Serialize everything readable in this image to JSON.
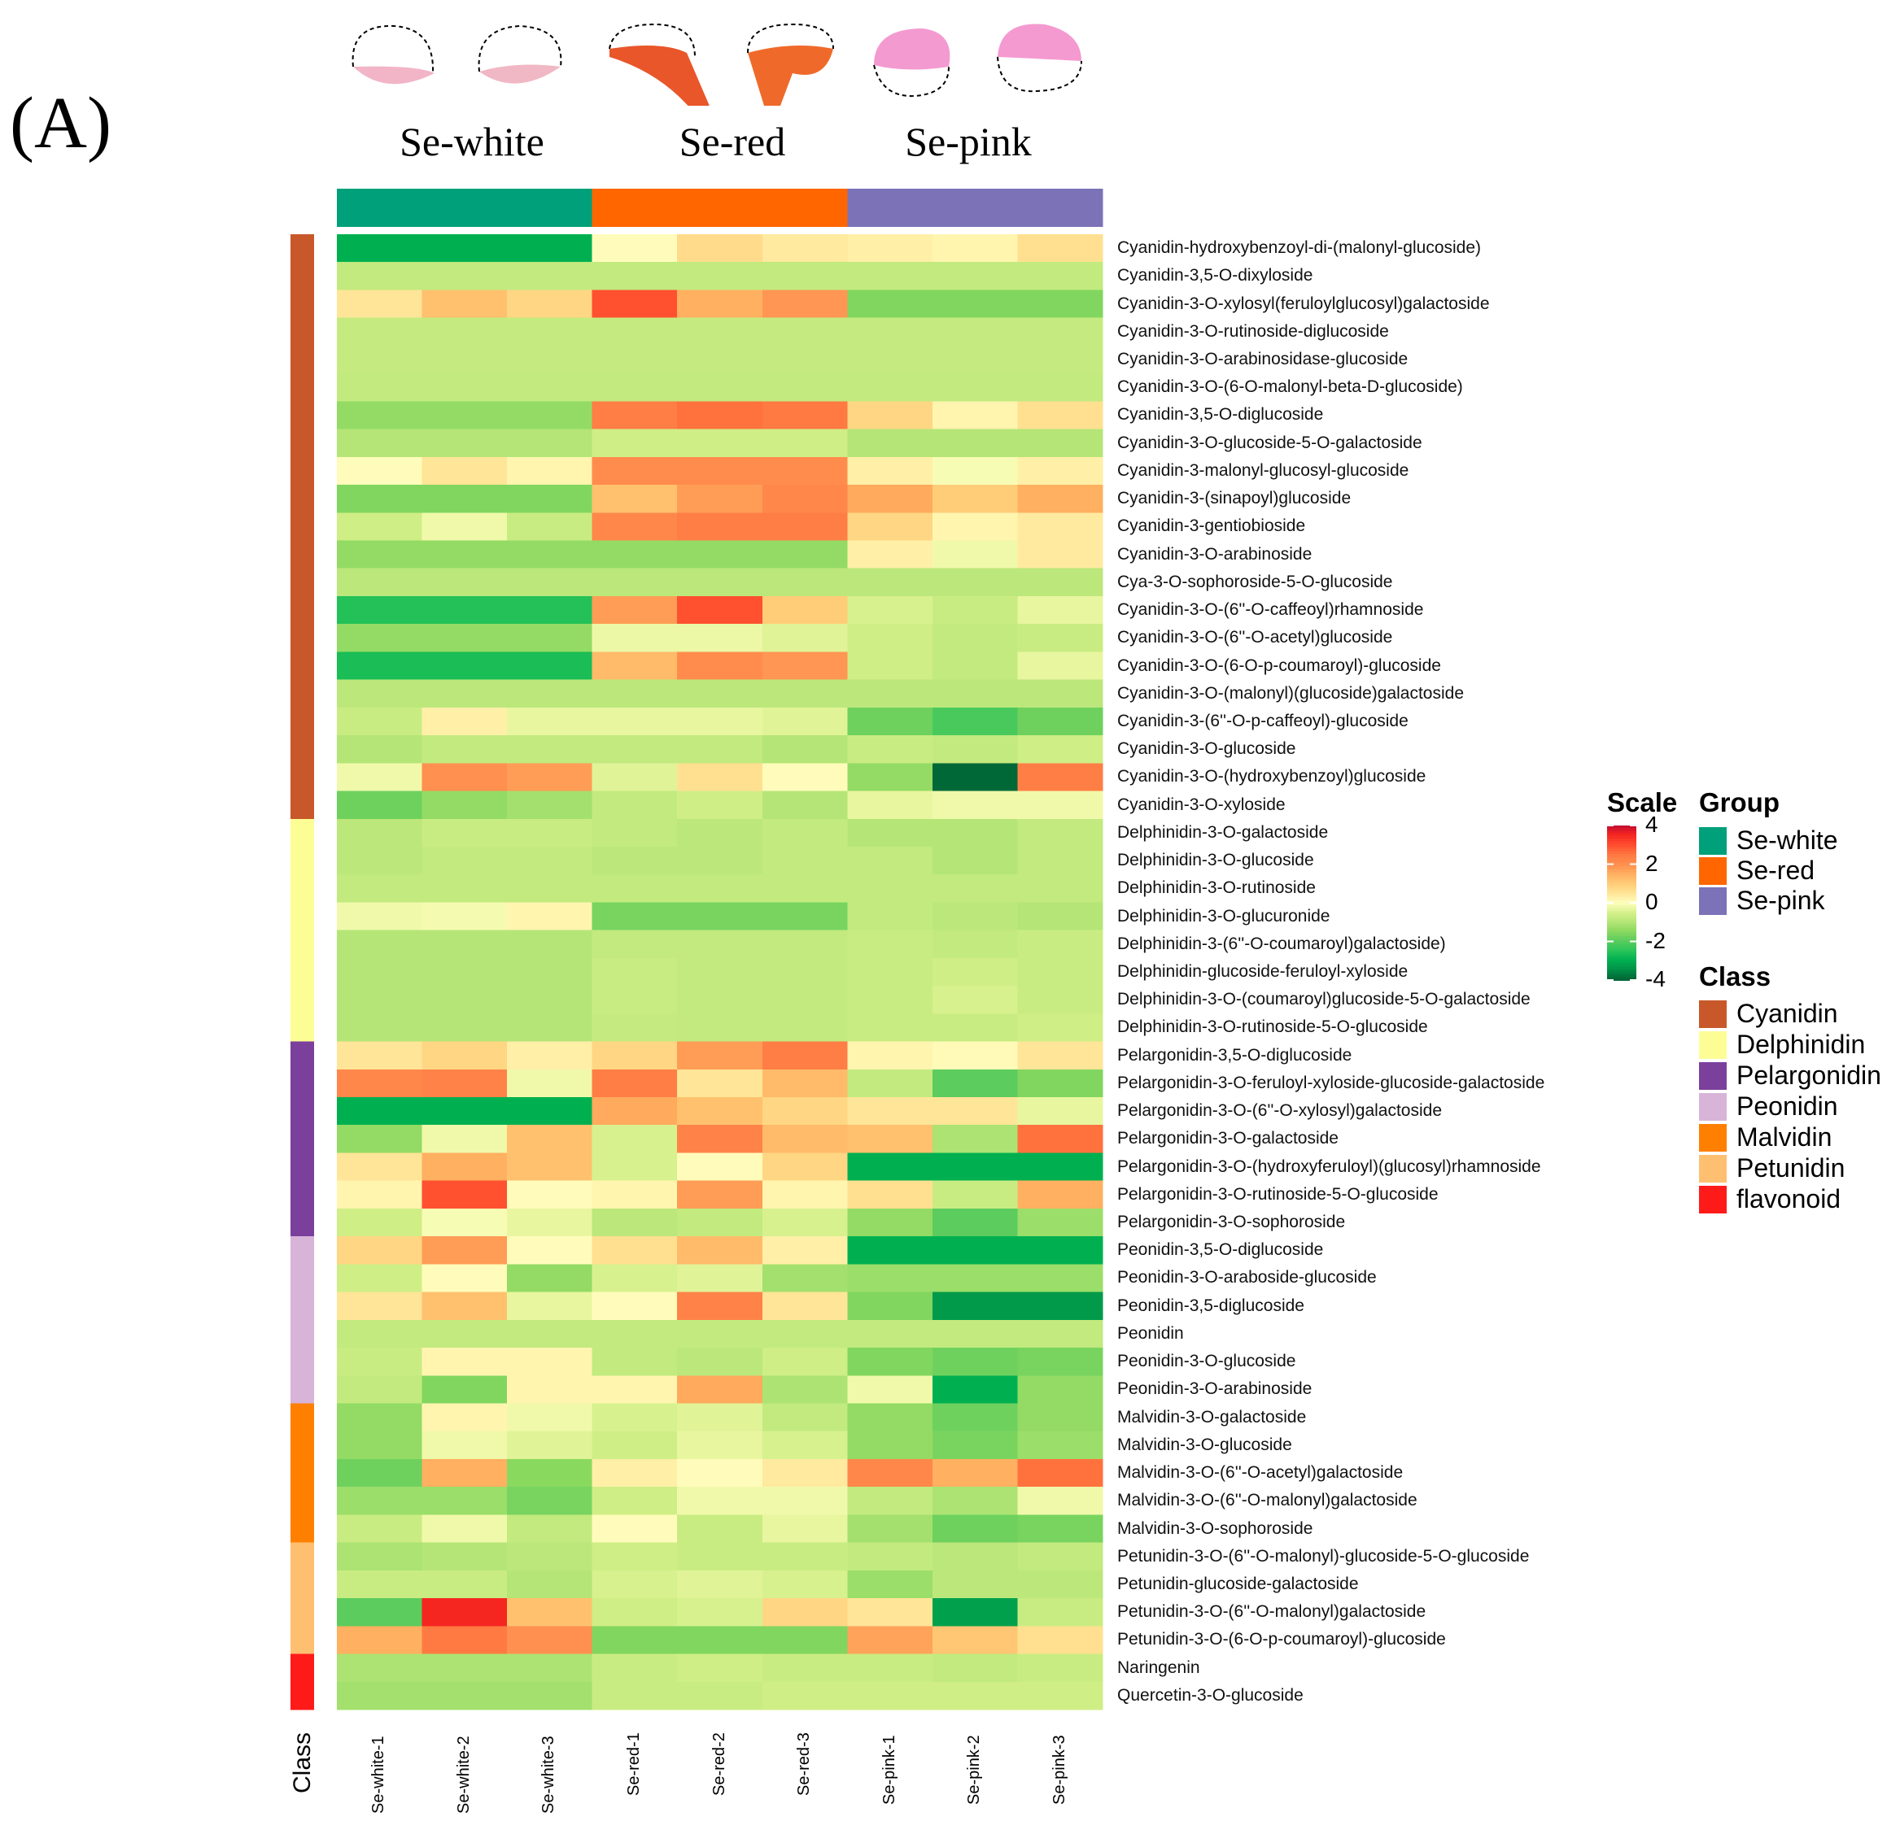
{
  "panel_label": "(A)",
  "chart_data": {
    "type": "heatmap",
    "groups": [
      {
        "name": "Se-white",
        "color": "#00a07a"
      },
      {
        "name": "Se-red",
        "color": "#ff6600"
      },
      {
        "name": "Se-pink",
        "color": "#7b72b8"
      }
    ],
    "columns": [
      "Se-white-1",
      "Se-white-2",
      "Se-white-3",
      "Se-red-1",
      "Se-red-2",
      "Se-red-3",
      "Se-pink-1",
      "Se-pink-2",
      "Se-pink-3"
    ],
    "column_groups": [
      0,
      0,
      0,
      1,
      1,
      1,
      2,
      2,
      2
    ],
    "classes": [
      {
        "name": "Cyanidin",
        "color": "#c8582a"
      },
      {
        "name": "Delphinidin",
        "color": "#fdfd96"
      },
      {
        "name": "Pelargonidin",
        "color": "#7b3f9c"
      },
      {
        "name": "Peonidin",
        "color": "#d8b4d8"
      },
      {
        "name": "Malvidin",
        "color": "#ff8000"
      },
      {
        "name": "Petunidin",
        "color": "#ffbf70"
      },
      {
        "name": "flavonoid",
        "color": "#ff1a1a"
      }
    ],
    "class_axis_label": "Class",
    "scale_title": "Scale",
    "group_title": "Group",
    "class_title": "Class",
    "scale_ticks": [
      4,
      2,
      0,
      -2,
      -4
    ],
    "zlim": [
      -4,
      4
    ],
    "color_stops": [
      [
        -4,
        "#006837"
      ],
      [
        -3.4,
        "#009a4a"
      ],
      [
        -3,
        "#00b050"
      ],
      [
        -2.5,
        "#2cc55a"
      ],
      [
        -2,
        "#5ccc5e"
      ],
      [
        -1.5,
        "#8ad95f"
      ],
      [
        -1,
        "#b5e577"
      ],
      [
        -0.6,
        "#cfee86"
      ],
      [
        -0.3,
        "#e8f6a0"
      ],
      [
        0,
        "#ffffbf"
      ],
      [
        0.5,
        "#ffe597"
      ],
      [
        1,
        "#ffcc78"
      ],
      [
        1.5,
        "#ffb060"
      ],
      [
        2,
        "#ff9050"
      ],
      [
        2.5,
        "#ff7a42"
      ],
      [
        3,
        "#ff5030"
      ],
      [
        3.6,
        "#f52520"
      ],
      [
        4,
        "#c8102e"
      ]
    ],
    "rows": [
      {
        "name": "Cyanidin-hydroxybenzoyl-di-(malonyl-glucoside)",
        "class": 0,
        "values": [
          -3,
          -3,
          -3,
          0.05,
          0.7,
          0.4,
          0.3,
          0.2,
          0.6
        ]
      },
      {
        "name": "Cyanidin-3,5-O-dixyloside",
        "class": 0,
        "values": [
          -0.8,
          -0.8,
          -0.8,
          -0.8,
          -0.8,
          -0.8,
          -0.8,
          -0.8,
          -0.8
        ]
      },
      {
        "name": "Cyanidin-3-O-xylosyl(feruloylglucosyl)galactoside",
        "class": 0,
        "values": [
          0.5,
          1.2,
          0.8,
          3.0,
          1.5,
          1.9,
          -1.6,
          -1.6,
          -1.6
        ]
      },
      {
        "name": "Cyanidin-3-O-rutinoside-diglucoside",
        "class": 0,
        "values": [
          -0.75,
          -0.75,
          -0.75,
          -0.75,
          -0.75,
          -0.75,
          -0.75,
          -0.75,
          -0.75
        ]
      },
      {
        "name": "Cyanidin-3-O-arabinosidase-glucoside",
        "class": 0,
        "values": [
          -0.75,
          -0.75,
          -0.75,
          -0.75,
          -0.75,
          -0.75,
          -0.75,
          -0.75,
          -0.75
        ]
      },
      {
        "name": "Cyanidin-3-O-(6-O-malonyl-beta-D-glucoside)",
        "class": 0,
        "values": [
          -0.8,
          -0.8,
          -0.8,
          -0.8,
          -0.8,
          -0.8,
          -0.8,
          -0.8,
          -0.8
        ]
      },
      {
        "name": "Cyanidin-3,5-O-diglucoside",
        "class": 0,
        "values": [
          -1.4,
          -1.4,
          -1.4,
          2.4,
          2.6,
          2.5,
          0.8,
          0.2,
          0.6
        ]
      },
      {
        "name": "Cyanidin-3-O-glucoside-5-O-galactoside",
        "class": 0,
        "values": [
          -1.0,
          -1.0,
          -1.0,
          -0.6,
          -0.6,
          -0.6,
          -1.0,
          -1.0,
          -1.0
        ]
      },
      {
        "name": "Cyanidin-3-malonyl-glucosyl-glucoside",
        "class": 0,
        "values": [
          0.05,
          0.5,
          0.2,
          2.1,
          2.1,
          2.1,
          0.3,
          -0.1,
          0.3
        ]
      },
      {
        "name": "Cyanidin-3-(sinapoyl)glucoside",
        "class": 0,
        "values": [
          -1.6,
          -1.6,
          -1.6,
          1.2,
          1.8,
          2.2,
          1.6,
          1.0,
          1.5
        ]
      },
      {
        "name": "Cyanidin-3-gentiobioside",
        "class": 0,
        "values": [
          -0.6,
          -0.2,
          -0.7,
          2.2,
          2.4,
          2.4,
          0.8,
          0.2,
          0.4
        ]
      },
      {
        "name": "Cyanidin-3-O-arabinoside",
        "class": 0,
        "values": [
          -1.4,
          -1.4,
          -1.4,
          -1.4,
          -1.4,
          -1.4,
          0.3,
          -0.2,
          0.4
        ]
      },
      {
        "name": "Cya-3-O-sophoroside-5-O-glucoside",
        "class": 0,
        "values": [
          -0.9,
          -0.9,
          -0.9,
          -0.9,
          -0.9,
          -0.9,
          -0.9,
          -0.9,
          -0.9
        ]
      },
      {
        "name": "Cyanidin-3-O-(6''-O-caffeoyl)rhamnoside",
        "class": 0,
        "values": [
          -2.6,
          -2.6,
          -2.6,
          1.8,
          3.0,
          1.0,
          -0.5,
          -0.7,
          -0.3
        ]
      },
      {
        "name": "Cyanidin-3-O-(6''-O-acetyl)glucoside",
        "class": 0,
        "values": [
          -1.4,
          -1.4,
          -1.4,
          -0.25,
          -0.25,
          -0.4,
          -0.6,
          -0.8,
          -0.7
        ]
      },
      {
        "name": "Cyanidin-3-O-(6-O-p-coumaroyl)-glucoside",
        "class": 0,
        "values": [
          -2.7,
          -2.7,
          -2.7,
          1.3,
          2.1,
          1.9,
          -0.6,
          -0.8,
          -0.3
        ]
      },
      {
        "name": "Cyanidin-3-O-(malonyl)(glucoside)galactoside",
        "class": 0,
        "values": [
          -0.9,
          -0.9,
          -0.9,
          -0.9,
          -0.9,
          -0.9,
          -0.9,
          -0.9,
          -0.9
        ]
      },
      {
        "name": "Cyanidin-3-(6''-O-p-caffeoyl)-glucoside",
        "class": 0,
        "values": [
          -0.7,
          0.3,
          -0.3,
          -0.3,
          -0.3,
          -0.4,
          -1.8,
          -2.2,
          -1.8
        ]
      },
      {
        "name": "Cyanidin-3-O-glucoside",
        "class": 0,
        "values": [
          -1.0,
          -0.8,
          -0.8,
          -0.8,
          -0.8,
          -1.0,
          -0.7,
          -0.8,
          -0.6
        ]
      },
      {
        "name": "Cyanidin-3-O-(hydroxybenzoyl)glucoside",
        "class": 0,
        "values": [
          -0.2,
          2.0,
          1.8,
          -0.4,
          0.6,
          0.05,
          -1.4,
          -4,
          2.4
        ]
      },
      {
        "name": "Cyanidin-3-O-xyloside",
        "class": 0,
        "values": [
          -1.8,
          -1.4,
          -1.2,
          -0.8,
          -0.6,
          -1.0,
          -0.3,
          -0.2,
          -0.2
        ]
      },
      {
        "name": "Delphinidin-3-O-galactoside",
        "class": 1,
        "values": [
          -0.9,
          -0.7,
          -0.7,
          -0.8,
          -0.9,
          -0.8,
          -1.0,
          -1.0,
          -0.8
        ]
      },
      {
        "name": "Delphinidin-3-O-glucoside",
        "class": 1,
        "values": [
          -0.9,
          -0.8,
          -0.8,
          -0.9,
          -0.9,
          -0.8,
          -0.8,
          -1.0,
          -0.8
        ]
      },
      {
        "name": "Delphinidin-3-O-rutinoside",
        "class": 1,
        "values": [
          -0.8,
          -0.8,
          -0.8,
          -0.8,
          -0.8,
          -0.8,
          -0.8,
          -0.8,
          -0.8
        ]
      },
      {
        "name": "Delphinidin-3-O-glucuronide",
        "class": 1,
        "values": [
          -0.2,
          -0.15,
          0.2,
          -1.7,
          -1.7,
          -1.7,
          -0.8,
          -0.9,
          -1.0
        ]
      },
      {
        "name": "Delphinidin-3-(6''-O-coumaroyl)galactoside)",
        "class": 1,
        "values": [
          -1.0,
          -1.0,
          -1.0,
          -0.8,
          -0.8,
          -0.8,
          -0.7,
          -0.8,
          -0.7
        ]
      },
      {
        "name": "Delphinidin-glucoside-feruloyl-xyloside",
        "class": 1,
        "values": [
          -1.0,
          -1.0,
          -1.0,
          -0.7,
          -0.8,
          -0.8,
          -0.7,
          -0.6,
          -0.7
        ]
      },
      {
        "name": "Delphinidin-3-O-(coumaroyl)glucoside-5-O-galactoside",
        "class": 1,
        "values": [
          -1.0,
          -1.0,
          -1.0,
          -0.7,
          -0.8,
          -0.8,
          -0.7,
          -0.5,
          -0.7
        ]
      },
      {
        "name": "Delphinidin-3-O-rutinoside-5-O-glucoside",
        "class": 1,
        "values": [
          -1.0,
          -1.0,
          -1.0,
          -0.75,
          -0.8,
          -0.8,
          -0.7,
          -0.7,
          -0.6
        ]
      },
      {
        "name": "Pelargonidin-3,5-O-diglucoside",
        "class": 2,
        "values": [
          0.5,
          0.8,
          0.3,
          0.8,
          1.8,
          2.4,
          0.2,
          0.1,
          0.5
        ]
      },
      {
        "name": "Pelargonidin-3-O-feruloyl-xyloside-glucoside-galactoside",
        "class": 2,
        "values": [
          2.2,
          2.3,
          -0.2,
          2.4,
          0.5,
          1.3,
          -0.8,
          -2.0,
          -1.6
        ]
      },
      {
        "name": "Pelargonidin-3-O-(6''-O-xylosyl)galactoside",
        "class": 2,
        "values": [
          -3,
          -3,
          -3,
          1.6,
          1.2,
          0.8,
          0.5,
          0.5,
          -0.3
        ]
      },
      {
        "name": "Pelargonidin-3-O-galactoside",
        "class": 2,
        "values": [
          -1.4,
          -0.2,
          1.2,
          -0.5,
          2.3,
          1.3,
          1.2,
          -1.1,
          2.6
        ]
      },
      {
        "name": "Pelargonidin-3-O-(hydroxyferuloyl)(glucosyl)rhamnoside",
        "class": 2,
        "values": [
          0.5,
          1.5,
          1.2,
          -0.5,
          0.05,
          0.8,
          -3,
          -3,
          -3
        ]
      },
      {
        "name": "Pelargonidin-3-O-rutinoside-5-O-glucoside",
        "class": 2,
        "values": [
          0.2,
          3.0,
          0.05,
          0.2,
          1.8,
          0.2,
          0.6,
          -0.7,
          1.5
        ]
      },
      {
        "name": "Pelargonidin-3-O-sophoroside",
        "class": 2,
        "values": [
          -0.6,
          -0.1,
          -0.3,
          -0.9,
          -0.8,
          -0.5,
          -1.4,
          -2.0,
          -1.3
        ]
      },
      {
        "name": "Peonidin-3,5-O-diglucoside",
        "class": 3,
        "values": [
          0.8,
          1.8,
          0.05,
          0.6,
          1.3,
          0.3,
          -3,
          -3,
          -3
        ]
      },
      {
        "name": "Peonidin-3-O-araboside-glucoside",
        "class": 3,
        "values": [
          -0.6,
          0.05,
          -1.4,
          -0.5,
          -0.4,
          -1.2,
          -1.3,
          -1.3,
          -1.3
        ]
      },
      {
        "name": "Peonidin-3,5-diglucoside",
        "class": 3,
        "values": [
          0.5,
          1.2,
          -0.3,
          0.05,
          2.3,
          0.5,
          -1.6,
          -3.4,
          -3.4
        ]
      },
      {
        "name": "Peonidin",
        "class": 3,
        "values": [
          -0.8,
          -0.8,
          -0.8,
          -0.8,
          -0.8,
          -0.8,
          -0.8,
          -0.8,
          -0.8
        ]
      },
      {
        "name": "Peonidin-3-O-glucoside",
        "class": 3,
        "values": [
          -0.7,
          0.2,
          0.2,
          -0.8,
          -0.9,
          -0.6,
          -1.6,
          -1.8,
          -1.7
        ]
      },
      {
        "name": "Peonidin-3-O-arabinoside",
        "class": 3,
        "values": [
          -0.8,
          -1.6,
          0.2,
          0.2,
          1.6,
          -1.1,
          -0.2,
          -3,
          -1.4
        ]
      },
      {
        "name": "Malvidin-3-O-galactoside",
        "class": 4,
        "values": [
          -1.4,
          0.2,
          -0.2,
          -0.5,
          -0.4,
          -0.8,
          -1.4,
          -1.8,
          -1.4
        ]
      },
      {
        "name": "Malvidin-3-O-glucoside",
        "class": 4,
        "values": [
          -1.4,
          -0.2,
          -0.4,
          -0.6,
          -0.3,
          -0.5,
          -1.4,
          -1.7,
          -1.3
        ]
      },
      {
        "name": "Malvidin-3-O-(6''-O-acetyl)galactoside",
        "class": 4,
        "values": [
          -1.8,
          1.5,
          -1.5,
          0.3,
          0.05,
          0.4,
          2.2,
          1.5,
          2.6
        ]
      },
      {
        "name": "Malvidin-3-O-(6''-O-malonyl)galactoside",
        "class": 4,
        "values": [
          -1.3,
          -1.3,
          -1.7,
          -0.6,
          -0.2,
          -0.2,
          -0.8,
          -1.1,
          -0.2
        ]
      },
      {
        "name": "Malvidin-3-O-sophoroside",
        "class": 4,
        "values": [
          -0.7,
          -0.2,
          -0.8,
          0.05,
          -0.7,
          -0.3,
          -1.2,
          -1.8,
          -1.7
        ]
      },
      {
        "name": "Petunidin-3-O-(6''-O-malonyl)-glucoside-5-O-glucoside",
        "class": 5,
        "values": [
          -1.1,
          -1.0,
          -0.9,
          -0.6,
          -0.7,
          -0.7,
          -0.8,
          -0.9,
          -0.8
        ]
      },
      {
        "name": "Petunidin-glucoside-galactoside",
        "class": 5,
        "values": [
          -0.7,
          -0.7,
          -1.0,
          -0.5,
          -0.4,
          -0.5,
          -1.3,
          -0.9,
          -0.9
        ]
      },
      {
        "name": "Petunidin-3-O-(6''-O-malonyl)galactoside",
        "class": 5,
        "values": [
          -2.0,
          3.6,
          1.2,
          -0.6,
          -0.5,
          0.8,
          0.5,
          -3.3,
          -0.7
        ]
      },
      {
        "name": "Petunidin-3-O-(6-O-p-coumaroyl)-glucoside",
        "class": 5,
        "values": [
          1.5,
          2.5,
          2.0,
          -1.6,
          -1.6,
          -1.6,
          1.7,
          1.1,
          0.6
        ]
      },
      {
        "name": "Naringenin",
        "class": 6,
        "values": [
          -1.1,
          -1.1,
          -1.1,
          -0.7,
          -0.6,
          -0.7,
          -0.7,
          -0.8,
          -0.7
        ]
      },
      {
        "name": "Quercetin-3-O-glucoside",
        "class": 6,
        "values": [
          -1.2,
          -1.2,
          -1.2,
          -0.7,
          -0.7,
          -0.6,
          -0.6,
          -0.6,
          -0.6
        ]
      }
    ]
  }
}
